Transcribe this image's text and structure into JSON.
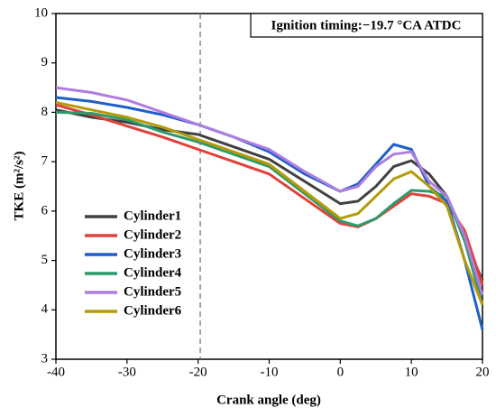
{
  "chart_data": {
    "type": "line",
    "annotation": "Ignition timing:−19.7 °CA ATDC",
    "ignition_line": -19.7,
    "x_label": "Crank angle (deg)",
    "y_label": "TKE (m²/s²)",
    "x": [
      -40,
      -35,
      -30,
      -25,
      -20,
      -15,
      -10,
      -5,
      0,
      2.5,
      5,
      7.5,
      10,
      12.5,
      15,
      17.5,
      20
    ],
    "series": [
      {
        "name": "Cylinder1",
        "color": "#404040",
        "values": [
          8.05,
          7.9,
          7.8,
          7.65,
          7.55,
          7.3,
          7.05,
          6.6,
          6.15,
          6.2,
          6.5,
          6.9,
          7.02,
          6.75,
          6.3,
          5.4,
          4.6
        ]
      },
      {
        "name": "Cylinder2",
        "color": "#e0413a",
        "values": [
          8.15,
          7.95,
          7.72,
          7.5,
          7.25,
          7.0,
          6.75,
          6.25,
          5.75,
          5.68,
          5.85,
          6.1,
          6.35,
          6.3,
          6.15,
          5.6,
          4.5
        ]
      },
      {
        "name": "Cylinder3",
        "color": "#1f5fc8",
        "values": [
          8.3,
          8.22,
          8.1,
          7.95,
          7.75,
          7.5,
          7.2,
          6.75,
          6.4,
          6.55,
          6.95,
          7.35,
          7.25,
          6.5,
          6.2,
          5.0,
          3.6
        ]
      },
      {
        "name": "Cylinder4",
        "color": "#2e9a6a",
        "values": [
          8.0,
          7.98,
          7.85,
          7.6,
          7.4,
          7.15,
          6.9,
          6.35,
          5.8,
          5.7,
          5.85,
          6.15,
          6.42,
          6.4,
          6.3,
          5.4,
          4.1
        ]
      },
      {
        "name": "Cylinder5",
        "color": "#b07de0",
        "values": [
          8.5,
          8.4,
          8.25,
          8.0,
          7.75,
          7.5,
          7.25,
          6.8,
          6.4,
          6.5,
          6.9,
          7.15,
          7.2,
          6.6,
          6.3,
          5.5,
          4.3
        ]
      },
      {
        "name": "Cylinder6",
        "color": "#b59a0a",
        "values": [
          8.2,
          8.05,
          7.9,
          7.7,
          7.45,
          7.2,
          6.95,
          6.4,
          5.85,
          5.95,
          6.3,
          6.65,
          6.8,
          6.5,
          6.1,
          5.0,
          4.1
        ]
      }
    ],
    "xlim": [
      -40,
      20
    ],
    "xticks": [
      -40,
      -30,
      -20,
      -10,
      0,
      10,
      20
    ],
    "ylim": [
      3,
      10
    ],
    "yticks": [
      3,
      4,
      5,
      6,
      7,
      8,
      9,
      10
    ],
    "legend": "lower left"
  }
}
